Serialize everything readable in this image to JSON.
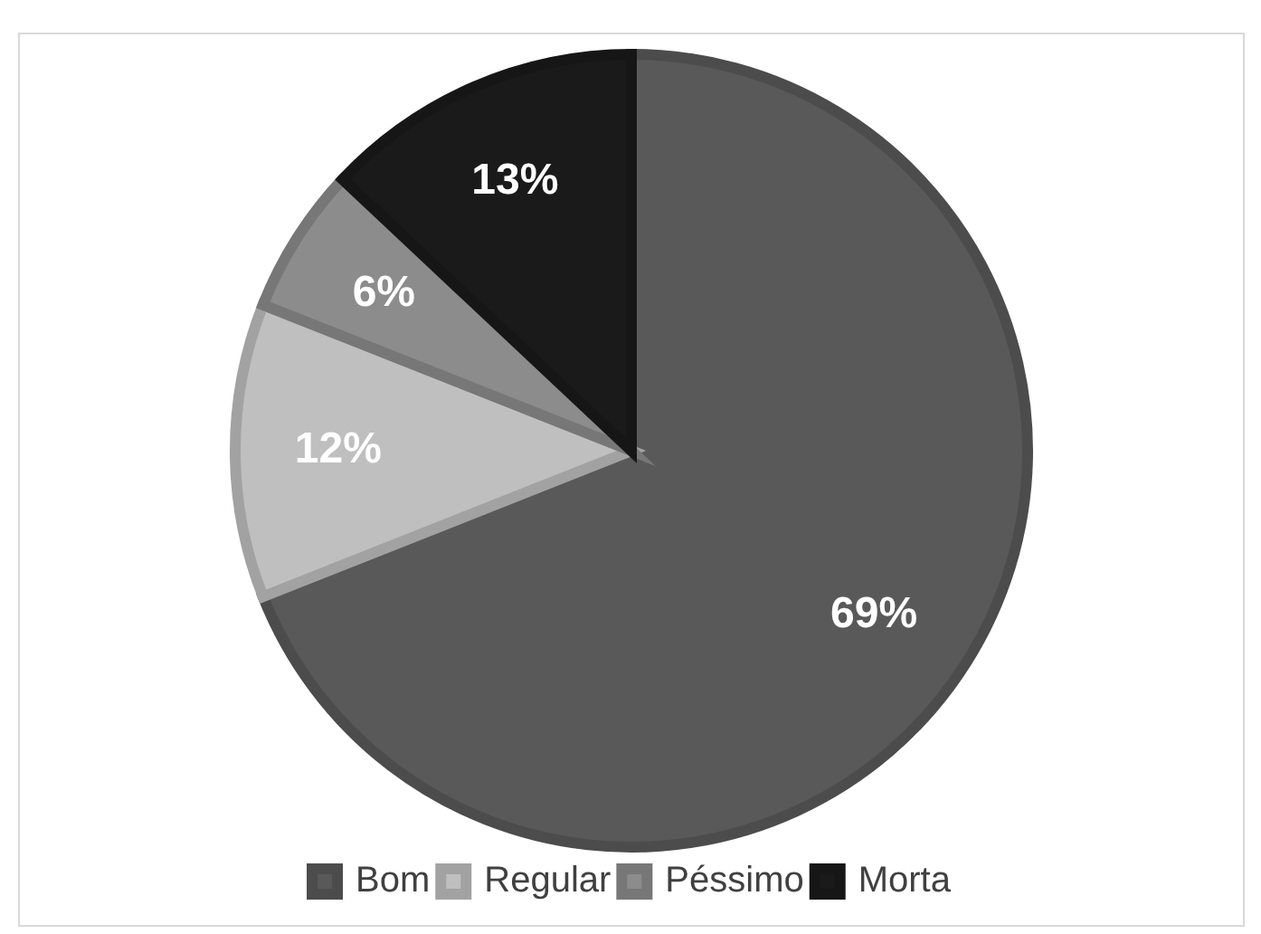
{
  "chart_data": {
    "type": "pie",
    "categories": [
      "Bom",
      "Regular",
      "Péssimo",
      "Morta"
    ],
    "values": [
      69,
      12,
      6,
      13
    ],
    "value_labels": [
      "69%",
      "12%",
      "6%",
      "13%"
    ],
    "colors": [
      "#595959",
      "#bfbfbf",
      "#8c8c8c",
      "#1a1a1a"
    ],
    "legend": "bottom"
  }
}
